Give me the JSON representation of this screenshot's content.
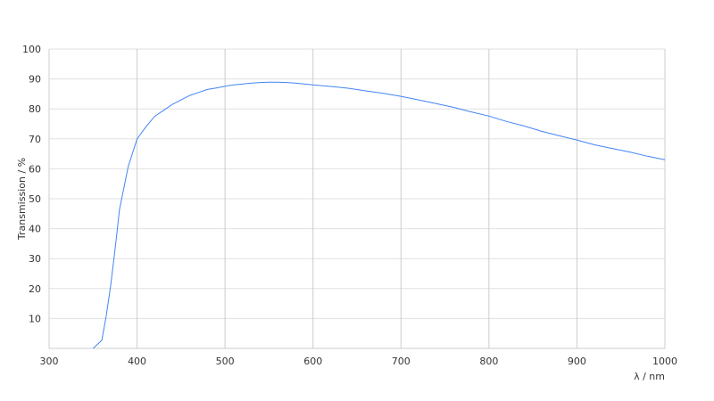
{
  "chart_data": {
    "type": "line",
    "title": "",
    "xlabel": "λ / nm",
    "ylabel": "Transmission / %",
    "xlim": [
      300,
      1000
    ],
    "ylim": [
      0,
      100
    ],
    "xticks": [
      300,
      400,
      500,
      600,
      700,
      800,
      900,
      1000
    ],
    "yticks": [
      10,
      20,
      30,
      40,
      50,
      60,
      70,
      80,
      90,
      100
    ],
    "grid": true,
    "line_color": "#4285f4",
    "series": [
      {
        "x": [
          350,
          360,
          365,
          370,
          375,
          380,
          390,
          400,
          410,
          420,
          430,
          440,
          450,
          460,
          470,
          480,
          490,
          500,
          510,
          520,
          530,
          540,
          550,
          560,
          570,
          580,
          590,
          600,
          620,
          640,
          660,
          680,
          700,
          720,
          740,
          760,
          780,
          800,
          820,
          840,
          860,
          880,
          900,
          920,
          940,
          960,
          980,
          1000
        ],
        "y": [
          0,
          2.7,
          11,
          21,
          33,
          46.4,
          60.8,
          70,
          74,
          77.5,
          79.5,
          81.5,
          83,
          84.5,
          85.5,
          86.5,
          87,
          87.6,
          88,
          88.3,
          88.6,
          88.8,
          88.9,
          88.9,
          88.8,
          88.6,
          88.3,
          88,
          87.5,
          86.9,
          86,
          85.2,
          84.2,
          83,
          81.8,
          80.5,
          79,
          77.6,
          75.8,
          74.3,
          72.5,
          71,
          69.6,
          68,
          66.8,
          65.6,
          64.2,
          63
        ]
      }
    ]
  }
}
